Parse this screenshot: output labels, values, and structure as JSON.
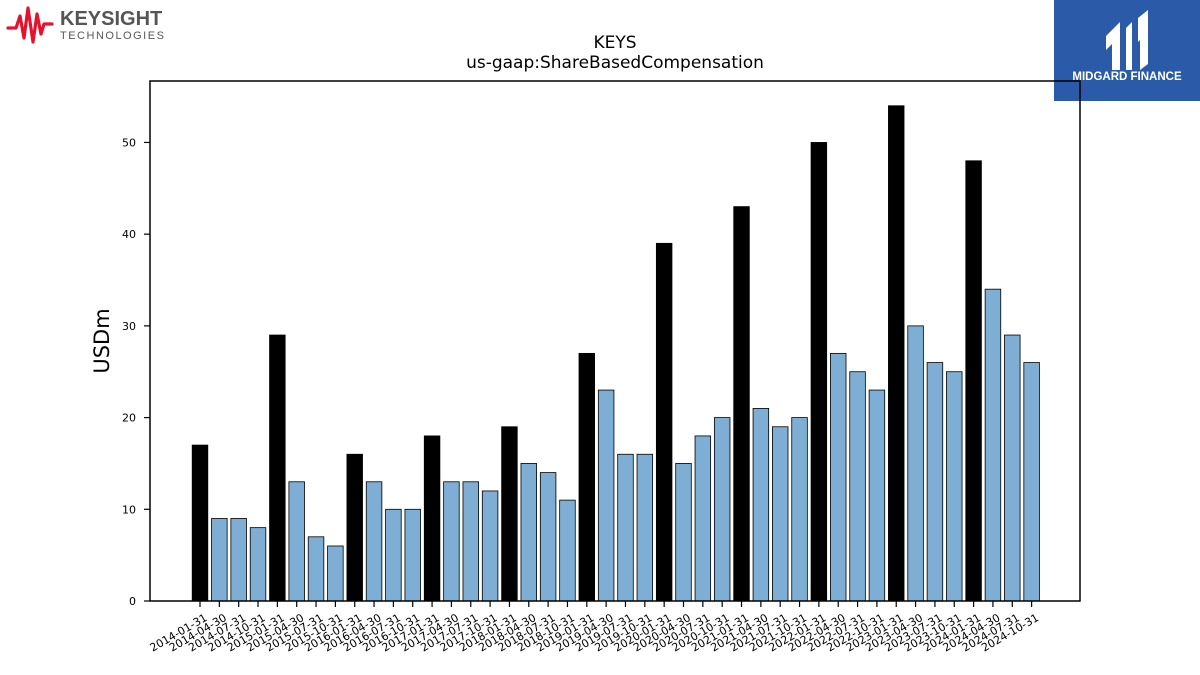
{
  "branding": {
    "left_logo": {
      "name": "KEYSIGHT",
      "sub": "TECHNOLOGIES",
      "icon": "waveform-logo-icon",
      "color": "#e8112d"
    },
    "right_logo": {
      "name": "MIDGARD FINANCE",
      "icon": "midgard-logo-icon",
      "color": "#2b5aa8"
    }
  },
  "chart_data": {
    "type": "bar",
    "title": "KEYS",
    "subtitle": "us-gaap:ShareBasedCompensation",
    "xlabel": "",
    "ylabel": "USDm",
    "ylim": [
      0,
      56.7
    ],
    "yticks": [
      0,
      10,
      20,
      30,
      40,
      50
    ],
    "grid": false,
    "colors": {
      "annual": "#000000",
      "quarterly": "#7eaed3",
      "edge": "#000000"
    },
    "categories": [
      "2014-01-31",
      "2014-04-30",
      "2014-07-31",
      "2014-10-31",
      "2015-01-31",
      "2015-04-30",
      "2015-07-31",
      "2015-10-31",
      "2016-01-31",
      "2016-04-30",
      "2016-07-31",
      "2016-10-31",
      "2017-01-31",
      "2017-04-30",
      "2017-07-31",
      "2017-10-31",
      "2018-01-31",
      "2018-04-30",
      "2018-07-31",
      "2018-10-31",
      "2019-01-31",
      "2019-04-30",
      "2019-07-31",
      "2019-10-31",
      "2020-01-31",
      "2020-04-30",
      "2020-07-31",
      "2020-10-31",
      "2021-01-31",
      "2021-04-30",
      "2021-07-31",
      "2021-10-31",
      "2022-01-31",
      "2022-04-30",
      "2022-07-31",
      "2022-10-31",
      "2023-01-31",
      "2023-04-30",
      "2023-07-31",
      "2023-10-31",
      "2024-01-31",
      "2024-04-30",
      "2024-07-31",
      "2024-10-31"
    ],
    "values": [
      17,
      9,
      9,
      8,
      29,
      13,
      7,
      6,
      16,
      13,
      10,
      10,
      18,
      13,
      13,
      12,
      19,
      15,
      14,
      11,
      27,
      23,
      16,
      16,
      39,
      15,
      18,
      20,
      43,
      21,
      19,
      20,
      50,
      27,
      25,
      23,
      54,
      30,
      26,
      25,
      48,
      34,
      29,
      26
    ],
    "highlight": [
      true,
      false,
      false,
      false,
      true,
      false,
      false,
      false,
      true,
      false,
      false,
      false,
      true,
      false,
      false,
      false,
      true,
      false,
      false,
      false,
      true,
      false,
      false,
      false,
      true,
      false,
      false,
      false,
      true,
      false,
      false,
      false,
      true,
      false,
      false,
      false,
      true,
      false,
      false,
      false,
      true,
      false,
      false,
      false
    ]
  }
}
